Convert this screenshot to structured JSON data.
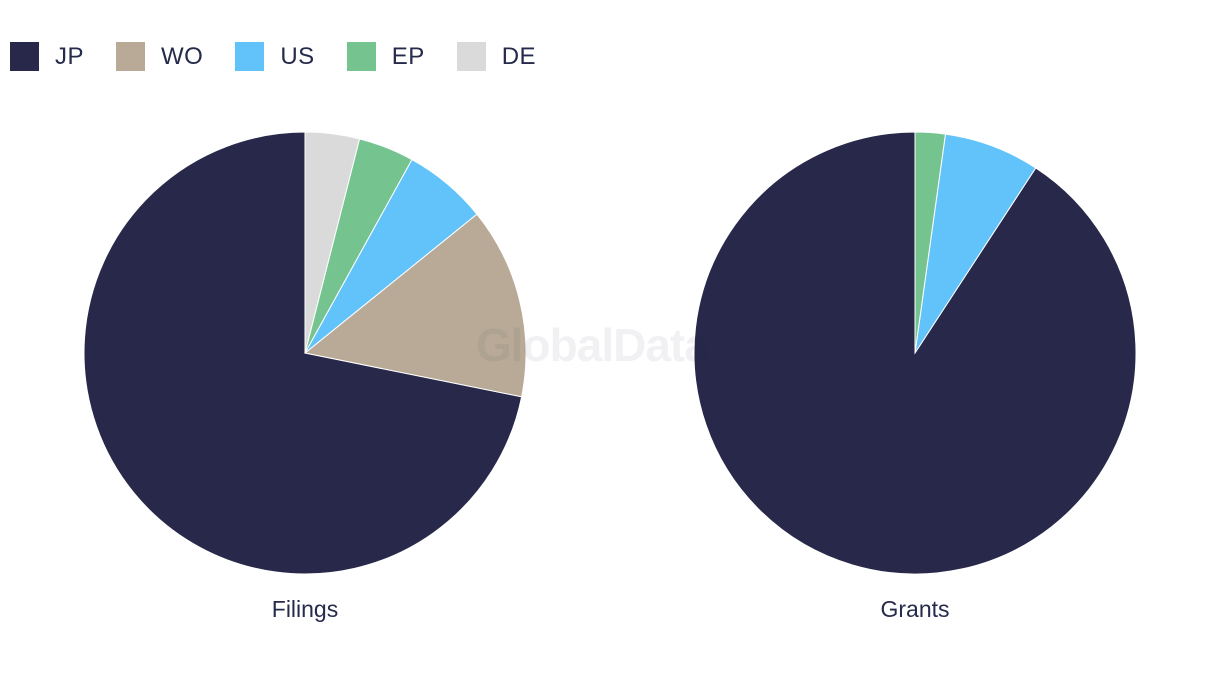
{
  "watermark": "GlobalData",
  "legend": [
    {
      "label": "JP",
      "color": "#27284a"
    },
    {
      "label": "WO",
      "color": "#b8aa96"
    },
    {
      "label": "US",
      "color": "#62c3fb"
    },
    {
      "label": "EP",
      "color": "#75c490"
    },
    {
      "label": "DE",
      "color": "#dadada"
    }
  ],
  "chart_data": [
    {
      "type": "pie",
      "title": "Filings",
      "slices": [
        {
          "label": "JP",
          "value": 72.4
        },
        {
          "label": "WO",
          "value": 14.1
        },
        {
          "label": "US",
          "value": 6.2
        },
        {
          "label": "EP",
          "value": 4.1
        },
        {
          "label": "DE",
          "value": 4.0
        }
      ]
    },
    {
      "type": "pie",
      "title": "Grants",
      "slices": [
        {
          "label": "JP",
          "value": 90.8
        },
        {
          "label": "US",
          "value": 7.0
        },
        {
          "label": "EP",
          "value": 2.2
        }
      ]
    }
  ]
}
